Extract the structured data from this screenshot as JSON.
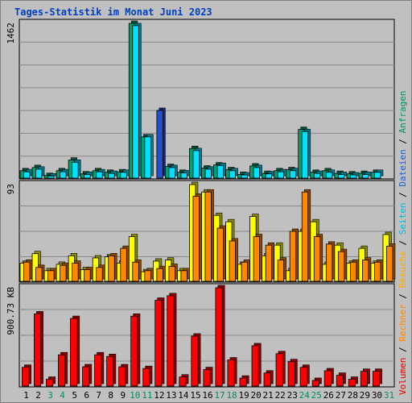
{
  "chart_data": [
    {
      "type": "bar",
      "title": "Tages-Statistik im Monat Juni 2023",
      "ymax_label": "1462",
      "categories": [
        "1",
        "2",
        "3",
        "4",
        "5",
        "6",
        "7",
        "8",
        "9",
        "10",
        "11",
        "12",
        "13",
        "14",
        "15",
        "16",
        "17",
        "18",
        "19",
        "20",
        "21",
        "22",
        "23",
        "24",
        "25",
        "26",
        "27",
        "28",
        "29",
        "30",
        "31"
      ],
      "weekend_days": [
        "3",
        "4",
        "10",
        "11",
        "17",
        "18",
        "24",
        "25",
        "31"
      ],
      "series": [
        {
          "name": "Anfragen",
          "values": [
            70,
            100,
            25,
            70,
            170,
            40,
            70,
            55,
            60,
            1462,
            390,
            0,
            110,
            55,
            280,
            95,
            125,
            80,
            35,
            115,
            45,
            70,
            80,
            460,
            55,
            70,
            45,
            40,
            45,
            55,
            0
          ]
        },
        {
          "name": "Dateien",
          "values": [
            60,
            85,
            20,
            60,
            150,
            35,
            60,
            45,
            55,
            1440,
            390,
            640,
            100,
            50,
            260,
            85,
            120,
            70,
            30,
            100,
            40,
            60,
            70,
            440,
            45,
            55,
            35,
            30,
            35,
            55,
            0
          ]
        }
      ],
      "colors": {
        "Anfragen": "#00a070",
        "Dateien": "#00e0ff",
        "Dateien_dark": "#2050d0"
      }
    },
    {
      "type": "bar",
      "ymax_label": "93",
      "categories": [
        "1",
        "2",
        "3",
        "4",
        "5",
        "6",
        "7",
        "8",
        "9",
        "10",
        "11",
        "12",
        "13",
        "14",
        "15",
        "16",
        "17",
        "18",
        "19",
        "20",
        "21",
        "22",
        "23",
        "24",
        "25",
        "26",
        "27",
        "28",
        "29",
        "30",
        "31"
      ],
      "series": [
        {
          "name": "Seiten",
          "values": [
            17,
            26,
            10,
            16,
            24,
            11,
            22,
            23,
            17,
            42,
            9,
            19,
            20,
            10,
            91,
            84,
            62,
            56,
            16,
            61,
            24,
            34,
            10,
            47,
            56,
            16,
            34,
            17,
            31,
            17,
            44
          ]
        },
        {
          "name": "Besuche",
          "values": [
            18,
            13,
            10,
            15,
            17,
            11,
            13,
            24,
            31,
            18,
            10,
            12,
            14,
            10,
            80,
            84,
            50,
            38,
            18,
            42,
            34,
            20,
            47,
            84,
            42,
            35,
            28,
            18,
            20,
            18,
            33
          ]
        }
      ],
      "colors": {
        "Seiten": "#ffff00",
        "Besuche": "#ff8800"
      }
    },
    {
      "type": "bar",
      "ymax_label": "900.73 KB",
      "categories": [
        "1",
        "2",
        "3",
        "4",
        "5",
        "6",
        "7",
        "8",
        "9",
        "10",
        "11",
        "12",
        "13",
        "14",
        "15",
        "16",
        "17",
        "18",
        "19",
        "20",
        "21",
        "22",
        "23",
        "24",
        "25",
        "26",
        "27",
        "28",
        "29",
        "30",
        "31"
      ],
      "series": [
        {
          "name": "KB",
          "values": [
            165,
            635,
            60,
            275,
            595,
            170,
            275,
            260,
            170,
            615,
            155,
            755,
            795,
            80,
            440,
            145,
            865,
            230,
            70,
            355,
            115,
            285,
            215,
            165,
            50,
            135,
            95,
            60,
            130,
            130,
            0
          ]
        }
      ],
      "colors": {
        "KB": "#ff0000"
      }
    }
  ],
  "legend": {
    "parts": [
      {
        "text": "Volumen",
        "color": "#e00000"
      },
      {
        "text": " / ",
        "color": "#000000"
      },
      {
        "text": "Rechner",
        "color": "#ff8800"
      },
      {
        "text": " / ",
        "color": "#000000"
      },
      {
        "text": "Besuche",
        "color": "#ffaa00"
      },
      {
        "text": " / ",
        "color": "#000000"
      },
      {
        "text": "Seiten",
        "color": "#00b8e0"
      },
      {
        "text": " / ",
        "color": "#000000"
      },
      {
        "text": "Dateien",
        "color": "#2060d0"
      },
      {
        "text": " / ",
        "color": "#000000"
      },
      {
        "text": "Anfragen",
        "color": "#00906a"
      }
    ]
  },
  "colors": {
    "plot_bg": "#c0c0c0",
    "grid": "#888888",
    "title": "#0040c0",
    "weekday_tick": "#000000",
    "weekend_tick": "#00905a"
  }
}
